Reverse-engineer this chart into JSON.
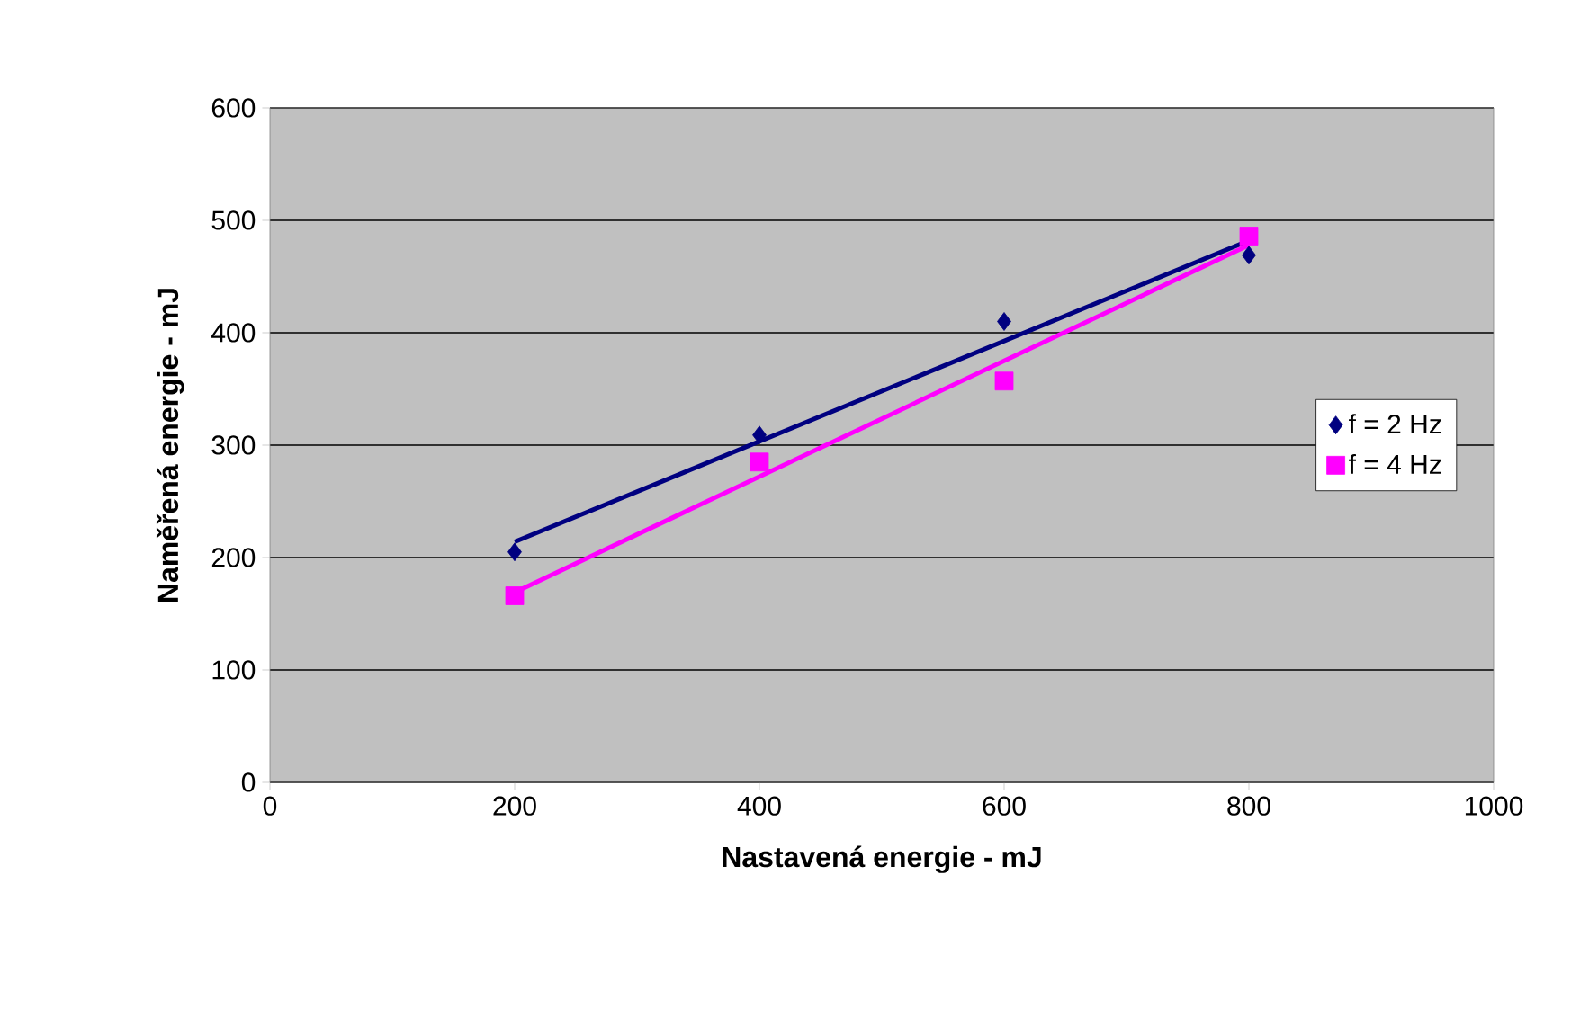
{
  "chart_data": {
    "type": "scatter",
    "xlabel": "Nastavená energie - mJ",
    "ylabel": "Naměřená energie - mJ",
    "xlim": [
      0,
      1000
    ],
    "xticks": [
      0,
      200,
      400,
      600,
      800,
      1000
    ],
    "ylim": [
      0,
      600
    ],
    "yticks": [
      0,
      100,
      200,
      300,
      400,
      500,
      600
    ],
    "grid": "y",
    "legend": "right",
    "series": [
      {
        "name": "f = 2 Hz",
        "color": "#000080",
        "marker": "diamond",
        "x": [
          200,
          400,
          600,
          800
        ],
        "values": [
          205,
          309,
          410,
          469
        ]
      },
      {
        "name": "f = 4 Hz",
        "color": "#ff00ff",
        "marker": "square",
        "x": [
          200,
          400,
          600,
          800
        ],
        "values": [
          166,
          285,
          357,
          486
        ]
      },
      {
        "type": "line",
        "color": "#000080",
        "marker": "none",
        "x": [
          200,
          800
        ],
        "values": [
          214,
          482
        ]
      },
      {
        "type": "line",
        "color": "#ff00ff",
        "marker": "none",
        "x": [
          200,
          800
        ],
        "values": [
          169,
          478
        ]
      }
    ]
  }
}
